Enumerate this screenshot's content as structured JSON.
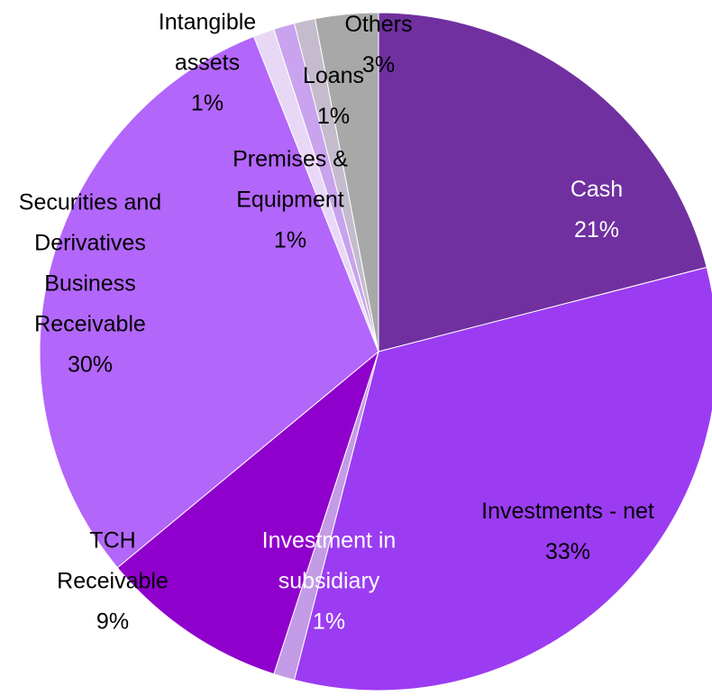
{
  "chart_data": {
    "type": "pie",
    "categories": [
      "Cash",
      "Investments - net",
      "Investment in subsidiary",
      "TCH Receivable",
      "Securities and Derivatives Business Receivable",
      "Intangible assets",
      "Premises & Equipment",
      "Loans",
      "Others"
    ],
    "values": [
      21,
      33,
      1,
      9,
      30,
      1,
      1,
      1,
      3
    ],
    "value_labels": [
      "21%",
      "33%",
      "1%",
      "9%",
      "30%",
      "1%",
      "1%",
      "1%",
      "3%"
    ],
    "colors": [
      "#7030a0",
      "#9b3cf2",
      "#c39be6",
      "#9000cc",
      "#b366fa",
      "#e8d8f6",
      "#c9a3ee",
      "#c4bccc",
      "#a8a8a8"
    ],
    "label_colors": [
      "#ffffff",
      "#000000",
      "#ffffff",
      "#000000",
      "#000000",
      "#000000",
      "#000000",
      "#000000",
      "#000000"
    ]
  }
}
